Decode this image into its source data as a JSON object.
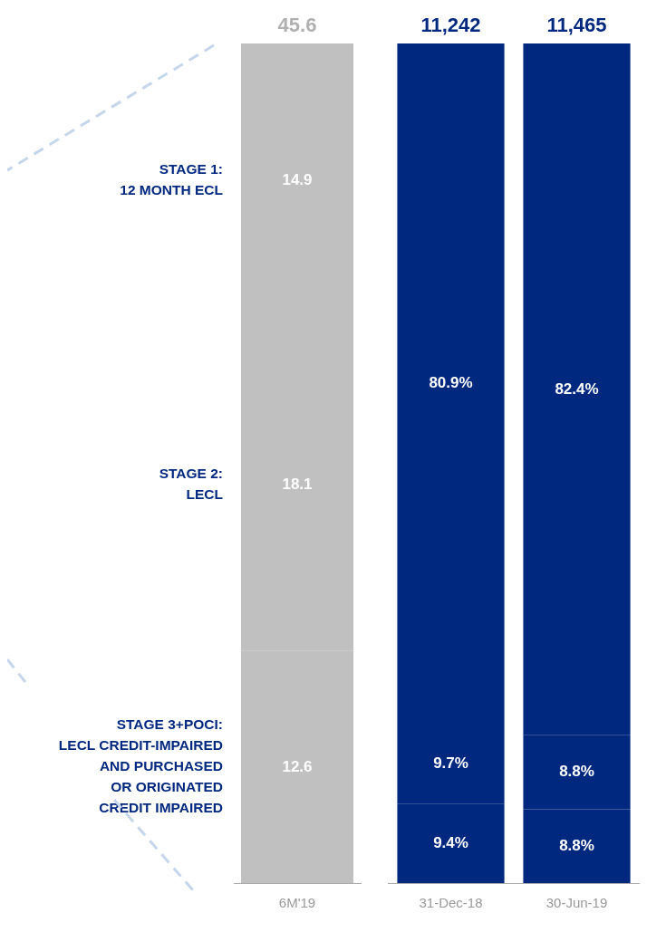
{
  "chart_data": [
    {
      "type": "bar",
      "stacked": true,
      "tick_labels": "x",
      "grid": false,
      "legend": false,
      "data_labels": true,
      "categories": [
        "6M'19"
      ],
      "series": [
        {
          "name": "STAGE 3+POCI:\nLECL CREDIT-IMPAIRED\nAND PURCHASED\nOR ORIGINATED\nCREDIT IMPAIRED",
          "color": "#c0c0c0",
          "values": [
            12.6
          ]
        },
        {
          "name": "STAGE 2:\nLECL",
          "color": "#c0c0c0",
          "values": [
            18.1
          ]
        },
        {
          "name": "STAGE 1:\n12 MONTH ECL",
          "color": "#c0c0c0",
          "values": [
            14.9
          ]
        }
      ],
      "totals": [
        "45.6"
      ]
    },
    {
      "type": "bar",
      "stacked": true,
      "tick_labels": "x",
      "grid": false,
      "legend": false,
      "categories": [
        "31-Dec-18",
        "30-Jun-19"
      ],
      "series": [
        {
          "color": "#00287f",
          "values": [
            9.4,
            8.8
          ],
          "value_labels": [
            "9.4%",
            "8.8%"
          ]
        },
        {
          "color": "#00287f",
          "values": [
            9.7,
            8.8
          ],
          "value_labels": [
            "9.7%",
            "8.8%"
          ]
        },
        {
          "color": "#00287f",
          "values": [
            80.9,
            82.4
          ],
          "value_labels": [
            "80.9%",
            "82.4%"
          ]
        }
      ],
      "annotations": [
        "11,242",
        "11,465"
      ]
    }
  ]
}
